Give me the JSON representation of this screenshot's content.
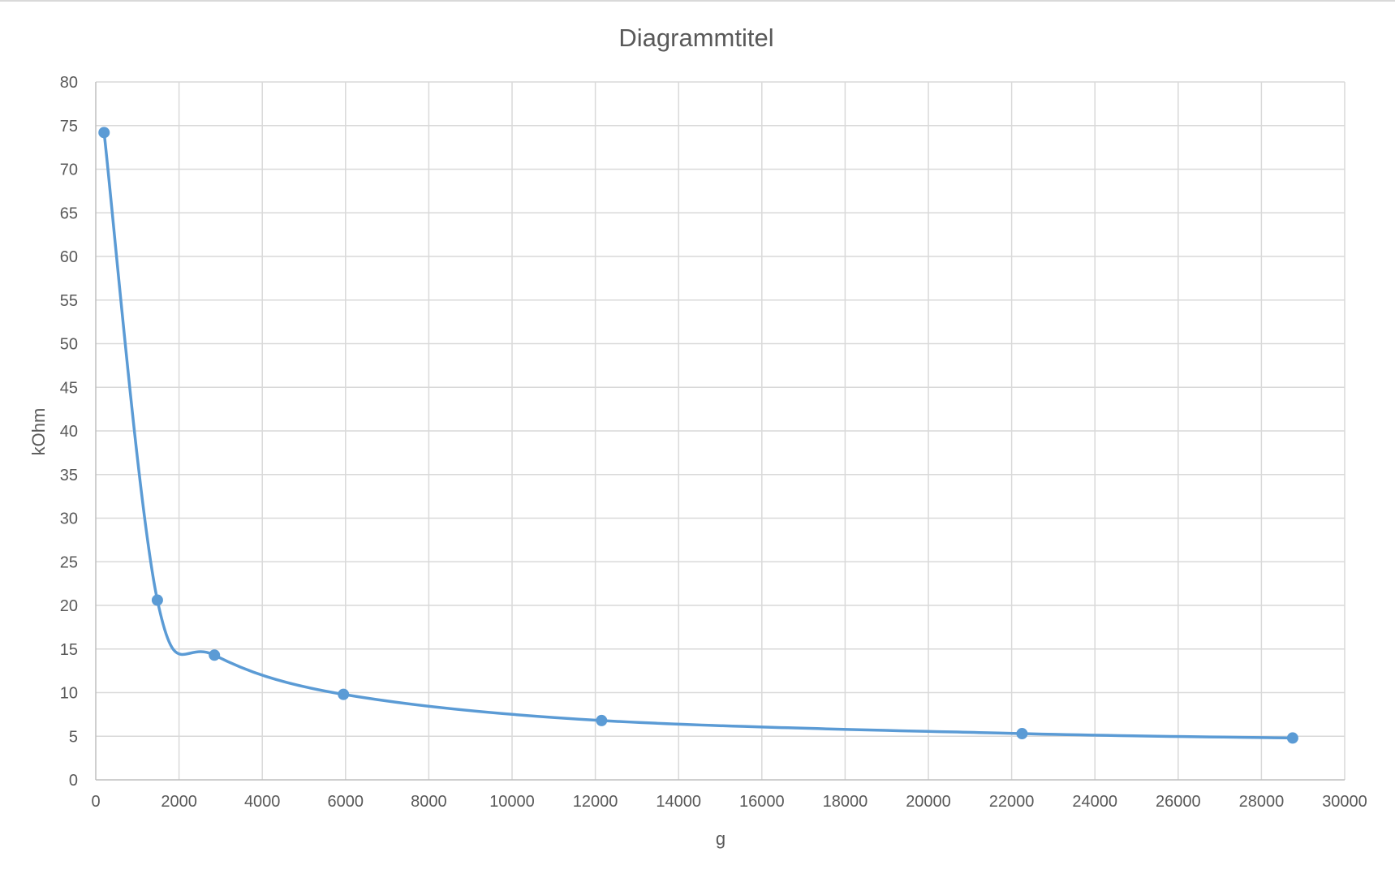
{
  "chart_data": {
    "type": "scatter",
    "title": "Diagrammtitel",
    "xlabel": "g",
    "ylabel": "kOhm",
    "xlim": [
      0,
      30000
    ],
    "ylim": [
      0,
      80
    ],
    "x_ticks": [
      "0",
      "2000",
      "4000",
      "6000",
      "8000",
      "10000",
      "12000",
      "14000",
      "16000",
      "18000",
      "20000",
      "22000",
      "24000",
      "26000",
      "28000",
      "30000"
    ],
    "y_ticks": [
      "0",
      "5",
      "10",
      "15",
      "20",
      "25",
      "30",
      "35",
      "40",
      "45",
      "50",
      "55",
      "60",
      "65",
      "70",
      "75",
      "80"
    ],
    "grid": true,
    "smooth_line": true,
    "color": "#5b9bd5",
    "series": [
      {
        "x": [
          200,
          1480,
          2850,
          5950,
          12150,
          22250,
          28750
        ],
        "y": [
          74.2,
          20.6,
          14.3,
          9.8,
          6.8,
          5.3,
          4.8
        ]
      }
    ]
  }
}
